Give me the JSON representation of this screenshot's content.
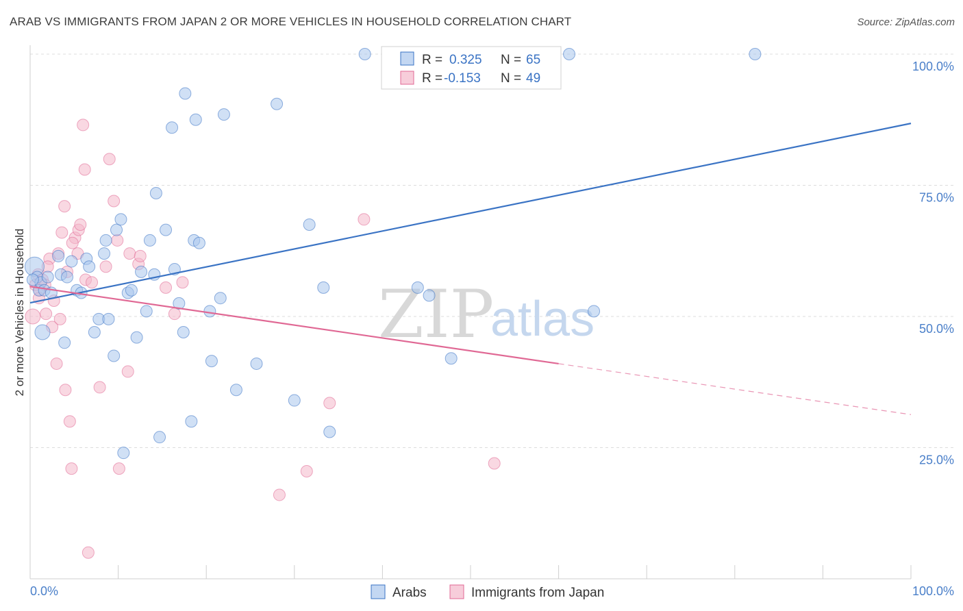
{
  "title": "ARAB VS IMMIGRANTS FROM JAPAN 2 OR MORE VEHICLES IN HOUSEHOLD CORRELATION CHART",
  "source": "Source: ZipAtlas.com",
  "watermark": {
    "zip": "ZIP",
    "atlas": "atlas"
  },
  "colors": {
    "blue": "#3a73c4",
    "blue_fill": "#a9c6ec",
    "pink": "#e06894",
    "pink_fill": "#f4b8cb",
    "grid": "#dcdcdc",
    "tick_text": "#4a7fc9"
  },
  "legend": {
    "rows": [
      {
        "r_label": "R =",
        "r_value": "0.325",
        "n_label": "N =",
        "n_value": "65"
      },
      {
        "r_label": "R =",
        "r_value": "-0.153",
        "n_label": "N =",
        "n_value": "49"
      }
    ]
  },
  "bottom_legend": [
    "Arabs",
    "Immigrants from Japan"
  ],
  "chart_data": {
    "type": "scatter",
    "xlabel": "",
    "ylabel": "2 or more Vehicles in Household",
    "xlim": [
      0,
      100
    ],
    "ylim": [
      0,
      100
    ],
    "x_tick_labels": [
      "0.0%",
      "100.0%"
    ],
    "y_ticks": [
      25,
      50,
      75,
      100
    ],
    "y_tick_labels": [
      "25.0%",
      "50.0%",
      "75.0%",
      "100.0%"
    ],
    "grid": true,
    "series": [
      {
        "name": "Arabs",
        "color": "#3a73c4",
        "r": 0.325,
        "n": 65,
        "trend": {
          "x0": 0,
          "y0": 52.6,
          "x1": 100,
          "y1": 86.8
        },
        "points": [
          [
            0.5,
            59.5
          ],
          [
            0.8,
            57.5
          ],
          [
            1.0,
            55.0
          ],
          [
            1.2,
            56.5
          ],
          [
            1.4,
            47.0
          ],
          [
            1.6,
            55.0
          ],
          [
            2.0,
            57.5
          ],
          [
            2.4,
            54.5
          ],
          [
            3.2,
            61.5
          ],
          [
            3.5,
            58.0
          ],
          [
            3.9,
            45.0
          ],
          [
            4.2,
            57.5
          ],
          [
            4.7,
            60.5
          ],
          [
            5.3,
            55.0
          ],
          [
            5.8,
            54.5
          ],
          [
            6.4,
            61.0
          ],
          [
            6.7,
            59.5
          ],
          [
            7.3,
            47.0
          ],
          [
            7.8,
            49.5
          ],
          [
            8.4,
            62.0
          ],
          [
            8.6,
            64.5
          ],
          [
            8.9,
            49.5
          ],
          [
            9.5,
            42.5
          ],
          [
            9.8,
            66.5
          ],
          [
            10.3,
            68.5
          ],
          [
            10.6,
            24.0
          ],
          [
            11.1,
            54.5
          ],
          [
            11.5,
            55.0
          ],
          [
            12.1,
            46.0
          ],
          [
            12.6,
            58.5
          ],
          [
            13.2,
            51.0
          ],
          [
            13.6,
            64.5
          ],
          [
            14.1,
            58.0
          ],
          [
            14.3,
            73.5
          ],
          [
            14.7,
            27.0
          ],
          [
            15.4,
            66.5
          ],
          [
            16.1,
            86.0
          ],
          [
            16.4,
            59.0
          ],
          [
            16.9,
            52.5
          ],
          [
            17.4,
            47.0
          ],
          [
            17.6,
            92.5
          ],
          [
            18.3,
            30.0
          ],
          [
            18.6,
            64.5
          ],
          [
            18.8,
            87.5
          ],
          [
            19.2,
            64.0
          ],
          [
            20.4,
            51.0
          ],
          [
            20.6,
            41.5
          ],
          [
            21.6,
            53.5
          ],
          [
            22.0,
            88.5
          ],
          [
            23.4,
            36.0
          ],
          [
            25.7,
            41.0
          ],
          [
            28.0,
            90.5
          ],
          [
            30.0,
            34.0
          ],
          [
            31.7,
            67.5
          ],
          [
            33.3,
            55.5
          ],
          [
            34.0,
            28.0
          ],
          [
            38.0,
            100.0
          ],
          [
            44.0,
            55.5
          ],
          [
            45.3,
            54.0
          ],
          [
            47.0,
            100.0
          ],
          [
            47.8,
            42.0
          ],
          [
            61.2,
            100.0
          ],
          [
            64.0,
            51.0
          ],
          [
            82.3,
            100.0
          ],
          [
            0.3,
            57.0
          ]
        ]
      },
      {
        "name": "Immigrants from Japan",
        "color": "#e06894",
        "r": -0.153,
        "n": 49,
        "trend": {
          "x0": 0,
          "y0": 55.7,
          "x1": 60,
          "y1": 41.0,
          "dash_x1": 100,
          "dash_y1": 31.3
        },
        "points": [
          [
            0.3,
            50.0
          ],
          [
            0.6,
            56.0
          ],
          [
            0.9,
            58.0
          ],
          [
            1.1,
            55.0
          ],
          [
            1.4,
            57.0
          ],
          [
            1.7,
            56.0
          ],
          [
            1.8,
            50.5
          ],
          [
            2.2,
            61.0
          ],
          [
            2.5,
            48.0
          ],
          [
            2.7,
            53.0
          ],
          [
            3.0,
            41.0
          ],
          [
            3.2,
            62.0
          ],
          [
            3.4,
            49.5
          ],
          [
            3.6,
            66.0
          ],
          [
            3.9,
            71.0
          ],
          [
            4.0,
            36.0
          ],
          [
            4.2,
            58.5
          ],
          [
            4.5,
            30.0
          ],
          [
            4.7,
            21.0
          ],
          [
            5.1,
            65.0
          ],
          [
            5.4,
            62.0
          ],
          [
            5.5,
            66.5
          ],
          [
            5.7,
            67.5
          ],
          [
            6.0,
            86.5
          ],
          [
            6.2,
            78.0
          ],
          [
            6.3,
            57.0
          ],
          [
            6.6,
            5.0
          ],
          [
            7.0,
            56.5
          ],
          [
            7.9,
            36.5
          ],
          [
            8.6,
            59.5
          ],
          [
            9.0,
            80.0
          ],
          [
            9.5,
            72.0
          ],
          [
            9.9,
            64.5
          ],
          [
            10.1,
            21.0
          ],
          [
            11.1,
            39.5
          ],
          [
            11.3,
            62.0
          ],
          [
            12.3,
            60.0
          ],
          [
            12.5,
            61.5
          ],
          [
            15.4,
            55.5
          ],
          [
            16.4,
            50.5
          ],
          [
            17.3,
            56.5
          ],
          [
            28.3,
            16.0
          ],
          [
            31.4,
            20.5
          ],
          [
            34.0,
            33.5
          ],
          [
            37.9,
            68.5
          ],
          [
            52.7,
            22.0
          ],
          [
            1.0,
            53.5
          ],
          [
            2.0,
            59.5
          ],
          [
            4.8,
            64.0
          ]
        ]
      }
    ]
  }
}
